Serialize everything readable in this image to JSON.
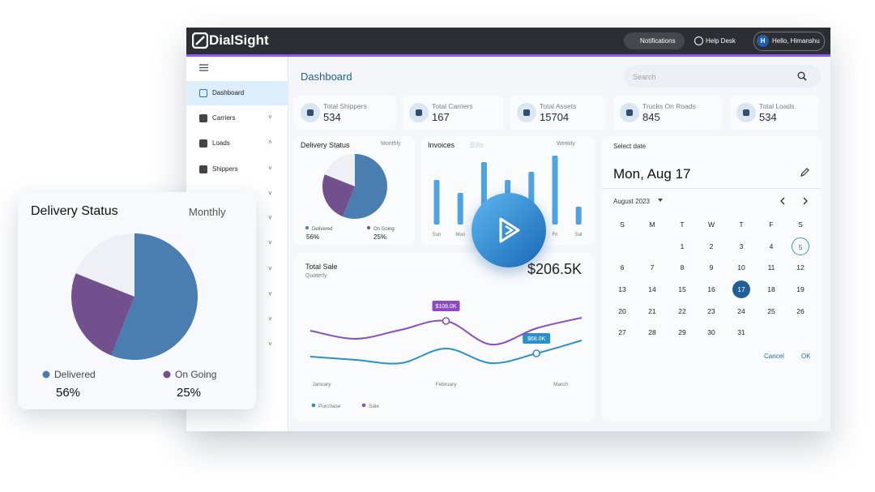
{
  "brand": "DialSight",
  "topbar": {
    "notifications": "Notifications",
    "help": "Help Desk",
    "greeting": "Hello, Himanshu",
    "avatar": "H"
  },
  "sidebar": [
    "Dashboard",
    "Carriers",
    "Loads",
    "Shippers"
  ],
  "page_title": "Dashboard",
  "search_placeholder": "Search",
  "stats": [
    {
      "label": "Total Shippers",
      "value": 534
    },
    {
      "label": "Total Carriers",
      "value": 167
    },
    {
      "label": "Total Assets",
      "value": 15704
    },
    {
      "label": "Trucks On Roads",
      "value": 845
    },
    {
      "label": "Total Loads",
      "value": 534
    }
  ],
  "delivery_status": {
    "type": "pie",
    "title": "Delivery Status",
    "period": "Monthly",
    "categories": [
      "Delivered",
      "On Going"
    ],
    "values": [
      56,
      25
    ],
    "value_labels": [
      "56%",
      "25%"
    ],
    "colors": [
      "#4a7db0",
      "#72508e"
    ]
  },
  "invoices": {
    "type": "bar",
    "title": "Invoices",
    "tab": "Bills",
    "period": "Weekly",
    "categories": [
      "Sun",
      "Mon",
      null,
      null,
      null,
      "Fri",
      "Sat"
    ],
    "values": [
      55,
      39,
      77,
      55,
      65,
      85,
      22
    ],
    "ylim": [
      0,
      100
    ],
    "color": "#4da3e4"
  },
  "total_sale": {
    "type": "line",
    "title": "Total Sale",
    "period": "Quaterly",
    "total": "$206.5K",
    "categories": [
      "January",
      null,
      null,
      "February",
      null,
      null,
      "March"
    ],
    "ylim": [
      30,
      130
    ],
    "series": [
      {
        "name": "Purchase",
        "color": "#2b8fc9",
        "values": [
          64,
          60,
          56,
          74,
          56,
          68,
          84
        ],
        "value_labels": [
          null,
          null,
          null,
          null,
          null,
          "$68.0K",
          null
        ]
      },
      {
        "name": "Sale",
        "color": "#8a4cc4",
        "values": [
          96,
          86,
          97,
          108,
          79,
          99,
          112
        ],
        "value_labels": [
          null,
          null,
          null,
          "$108.0K",
          null,
          null,
          null
        ]
      }
    ]
  },
  "calendar": {
    "label": "Select date",
    "date": "Mon, Aug 17",
    "month": "August 2023",
    "weekdays": [
      "S",
      "M",
      "T",
      "W",
      "T",
      "F",
      "S"
    ],
    "weeks": [
      [
        null,
        null,
        1,
        2,
        3,
        4,
        5
      ],
      [
        6,
        7,
        8,
        9,
        10,
        11,
        12
      ],
      [
        13,
        14,
        15,
        16,
        17,
        18,
        19
      ],
      [
        20,
        21,
        22,
        23,
        24,
        25,
        26
      ],
      [
        27,
        28,
        29,
        30,
        31,
        null,
        null
      ]
    ],
    "today": 5,
    "selected": 17,
    "cancel": "Cancel",
    "ok": "OK"
  }
}
